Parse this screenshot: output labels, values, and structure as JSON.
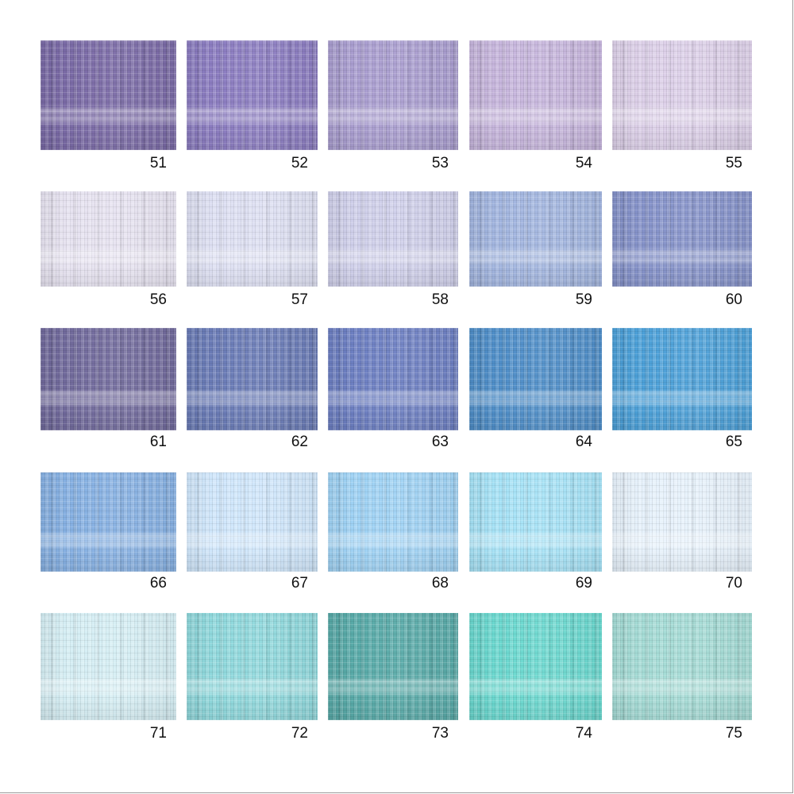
{
  "swatches": [
    {
      "label": "51",
      "color": "#7a6aa6"
    },
    {
      "label": "52",
      "color": "#8b7cc0"
    },
    {
      "label": "53",
      "color": "#a99dcf"
    },
    {
      "label": "54",
      "color": "#c6b5dc"
    },
    {
      "label": "55",
      "color": "#dccfe8"
    },
    {
      "label": "56",
      "color": "#e6e2f0"
    },
    {
      "label": "57",
      "color": "#dddff2"
    },
    {
      "label": "58",
      "color": "#cfcfea"
    },
    {
      "label": "59",
      "color": "#a2b5df"
    },
    {
      "label": "60",
      "color": "#8592c9"
    },
    {
      "label": "61",
      "color": "#716a9c"
    },
    {
      "label": "62",
      "color": "#6a7bb6"
    },
    {
      "label": "63",
      "color": "#6d7fc2"
    },
    {
      "label": "64",
      "color": "#4f8ec8"
    },
    {
      "label": "65",
      "color": "#4ca0d8"
    },
    {
      "label": "66",
      "color": "#86b0e2"
    },
    {
      "label": "67",
      "color": "#cfe6fb"
    },
    {
      "label": "68",
      "color": "#9fd2f4"
    },
    {
      "label": "69",
      "color": "#a6e2f6"
    },
    {
      "label": "70",
      "color": "#e6f1fb"
    },
    {
      "label": "71",
      "color": "#d5eef4"
    },
    {
      "label": "72",
      "color": "#8fd8dc"
    },
    {
      "label": "73",
      "color": "#58aaa8"
    },
    {
      "label": "74",
      "color": "#6bd8cf"
    },
    {
      "label": "75",
      "color": "#a4dbd5"
    }
  ]
}
